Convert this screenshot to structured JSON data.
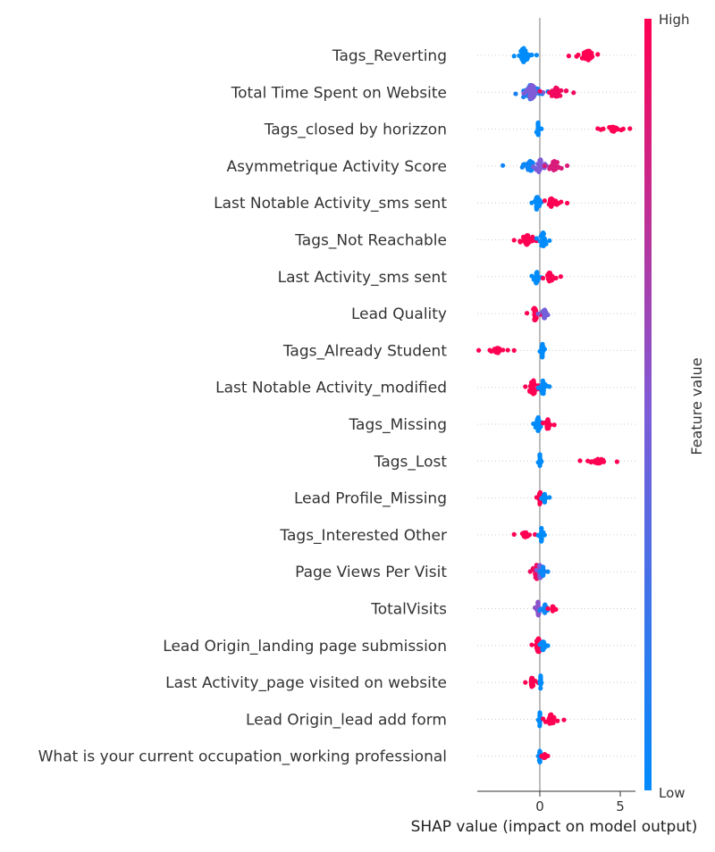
{
  "chart_data": {
    "type": "scatter",
    "subtype": "shap-beeswarm",
    "xlabel": "SHAP value (impact on model output)",
    "x_ticks": [
      0,
      5
    ],
    "xlim": [
      -4,
      6
    ],
    "colorbar": {
      "title": "Feature value",
      "high_label": "High",
      "low_label": "Low",
      "low_color": "#008bfb",
      "mid_color": "#7f5bd6",
      "high_color": "#ff0052"
    },
    "features": [
      {
        "name": "Tags_Reverting",
        "clusters": [
          {
            "min": -1.6,
            "max": -0.2,
            "center": -1.0,
            "value": 0.0,
            "density": 3
          },
          {
            "min": 1.8,
            "max": 3.6,
            "center": 3.0,
            "value": 1.0,
            "density": 2
          }
        ]
      },
      {
        "name": "Total Time Spent on Website",
        "clusters": [
          {
            "min": -1.5,
            "max": 0.5,
            "center": -0.6,
            "value": 0.1,
            "density": 3
          },
          {
            "min": -1.0,
            "max": 0.2,
            "center": -0.5,
            "value": 0.5,
            "density": 3
          },
          {
            "min": 0.0,
            "max": 2.1,
            "center": 1.0,
            "value": 0.95,
            "density": 2
          }
        ]
      },
      {
        "name": "Tags_closed by horizzon",
        "clusters": [
          {
            "min": -0.2,
            "max": 0.1,
            "center": -0.1,
            "value": 0.0,
            "density": 3
          },
          {
            "min": 3.6,
            "max": 5.6,
            "center": 4.6,
            "value": 1.0,
            "density": 1
          }
        ]
      },
      {
        "name": "Asymmetrique Activity Score",
        "clusters": [
          {
            "min": -2.3,
            "max": -0.1,
            "center": -0.6,
            "value": 0.05,
            "density": 2
          },
          {
            "min": -0.4,
            "max": 0.4,
            "center": 0.0,
            "value": 0.5,
            "density": 3
          },
          {
            "min": 0.3,
            "max": 1.7,
            "center": 0.9,
            "value": 0.85,
            "density": 2
          }
        ]
      },
      {
        "name": "Last Notable Activity_sms sent",
        "clusters": [
          {
            "min": -0.5,
            "max": 0.1,
            "center": -0.2,
            "value": 0.0,
            "density": 3
          },
          {
            "min": 0.3,
            "max": 1.7,
            "center": 0.7,
            "value": 1.0,
            "density": 2
          }
        ]
      },
      {
        "name": "Tags_Not Reachable",
        "clusters": [
          {
            "min": -1.6,
            "max": -0.2,
            "center": -0.8,
            "value": 1.0,
            "density": 2
          },
          {
            "min": -0.2,
            "max": 0.6,
            "center": 0.2,
            "value": 0.0,
            "density": 3
          }
        ]
      },
      {
        "name": "Last Activity_sms sent",
        "clusters": [
          {
            "min": -0.5,
            "max": 0.1,
            "center": -0.2,
            "value": 0.0,
            "density": 3
          },
          {
            "min": 0.2,
            "max": 1.3,
            "center": 0.6,
            "value": 1.0,
            "density": 2
          }
        ]
      },
      {
        "name": "Lead Quality",
        "clusters": [
          {
            "min": -0.8,
            "max": 0.1,
            "center": -0.3,
            "value": 1.0,
            "density": 3
          },
          {
            "min": -0.1,
            "max": 0.5,
            "center": 0.3,
            "value": 0.45,
            "density": 2
          }
        ]
      },
      {
        "name": "Tags_Already Student",
        "clusters": [
          {
            "min": -3.8,
            "max": -1.6,
            "center": -2.6,
            "value": 1.0,
            "density": 1
          },
          {
            "min": 0.0,
            "max": 0.3,
            "center": 0.15,
            "value": 0.0,
            "density": 3
          }
        ]
      },
      {
        "name": "Last Notable Activity_modified",
        "clusters": [
          {
            "min": -0.9,
            "max": 0.0,
            "center": -0.4,
            "value": 1.0,
            "density": 3
          },
          {
            "min": -0.1,
            "max": 0.6,
            "center": 0.2,
            "value": 0.0,
            "density": 3
          }
        ]
      },
      {
        "name": "Tags_Missing",
        "clusters": [
          {
            "min": -0.4,
            "max": 0.1,
            "center": -0.1,
            "value": 0.0,
            "density": 3
          },
          {
            "min": 0.2,
            "max": 0.9,
            "center": 0.5,
            "value": 1.0,
            "density": 2
          }
        ]
      },
      {
        "name": "Tags_Lost",
        "clusters": [
          {
            "min": -0.1,
            "max": 0.1,
            "center": 0.0,
            "value": 0.0,
            "density": 3
          },
          {
            "min": 2.5,
            "max": 4.8,
            "center": 3.6,
            "value": 1.0,
            "density": 1
          }
        ]
      },
      {
        "name": "Lead Profile_Missing",
        "clusters": [
          {
            "min": -0.2,
            "max": 0.1,
            "center": 0.0,
            "value": 1.0,
            "density": 3
          },
          {
            "min": 0.1,
            "max": 0.6,
            "center": 0.3,
            "value": 0.0,
            "density": 2
          }
        ]
      },
      {
        "name": "Tags_Interested Other",
        "clusters": [
          {
            "min": -1.6,
            "max": -0.3,
            "center": -0.9,
            "value": 1.0,
            "density": 1
          },
          {
            "min": -0.1,
            "max": 0.3,
            "center": 0.1,
            "value": 0.0,
            "density": 3
          }
        ]
      },
      {
        "name": "Page Views Per Visit",
        "clusters": [
          {
            "min": -0.6,
            "max": 0.1,
            "center": -0.2,
            "value": 0.95,
            "density": 3
          },
          {
            "min": -0.2,
            "max": 0.3,
            "center": 0.0,
            "value": 0.5,
            "density": 3
          },
          {
            "min": 0.0,
            "max": 0.5,
            "center": 0.2,
            "value": 0.05,
            "density": 2
          }
        ]
      },
      {
        "name": "TotalVisits",
        "clusters": [
          {
            "min": -0.3,
            "max": 0.1,
            "center": -0.1,
            "value": 0.55,
            "density": 3
          },
          {
            "min": 0.0,
            "max": 0.8,
            "center": 0.3,
            "value": 0.05,
            "density": 2
          },
          {
            "min": 0.5,
            "max": 1.0,
            "center": 0.8,
            "value": 1.0,
            "density": 1
          }
        ]
      },
      {
        "name": "Lead Origin_landing page submission",
        "clusters": [
          {
            "min": -0.5,
            "max": 0.1,
            "center": -0.1,
            "value": 1.0,
            "density": 3
          },
          {
            "min": 0.0,
            "max": 0.5,
            "center": 0.2,
            "value": 0.0,
            "density": 2
          }
        ]
      },
      {
        "name": "Last Activity_page visited on website",
        "clusters": [
          {
            "min": -0.9,
            "max": -0.1,
            "center": -0.5,
            "value": 1.0,
            "density": 2
          },
          {
            "min": 0.0,
            "max": 0.1,
            "center": 0.05,
            "value": 0.0,
            "density": 3
          }
        ]
      },
      {
        "name": "Lead Origin_lead add form",
        "clusters": [
          {
            "min": -0.1,
            "max": 0.1,
            "center": 0.0,
            "value": 0.0,
            "density": 3
          },
          {
            "min": 0.2,
            "max": 1.5,
            "center": 0.7,
            "value": 1.0,
            "density": 2
          }
        ]
      },
      {
        "name": "What is your current occupation_working professional",
        "clusters": [
          {
            "min": -0.1,
            "max": 0.1,
            "center": 0.0,
            "value": 0.0,
            "density": 3
          },
          {
            "min": 0.1,
            "max": 0.5,
            "center": 0.3,
            "value": 1.0,
            "density": 1
          }
        ]
      }
    ]
  }
}
